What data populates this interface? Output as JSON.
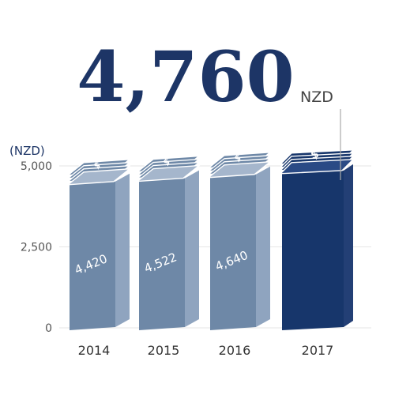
{
  "headline": {
    "value": "4,760",
    "unit": "NZD"
  },
  "colors": {
    "highlight": "#17366b",
    "bar_front": "#6e88a7",
    "bar_side": "#8fa4bf",
    "bar_top": "#a5b6cc",
    "highlight_side": "#233f75",
    "highlight_top": "#2a4a85",
    "grid": "#e6e6e6",
    "leader": "#aaaaaa"
  },
  "icons": {
    "bar_top": "dollar-bill-stack-icon"
  },
  "chart_data": {
    "type": "bar",
    "title": "",
    "xlabel": "",
    "ylabel": "(NZD)",
    "categories": [
      "2014",
      "2015",
      "2016",
      "2017"
    ],
    "values": [
      4420,
      4522,
      4640,
      4760
    ],
    "data_labels": [
      "4,420",
      "4,522",
      "4,640",
      ""
    ],
    "highlight_index": 3,
    "ylim": [
      0,
      5000
    ],
    "yticks": [
      0,
      2500,
      5000
    ],
    "ytick_labels": [
      "0",
      "2,500",
      "5,000"
    ],
    "grid": true,
    "legend": "none"
  }
}
